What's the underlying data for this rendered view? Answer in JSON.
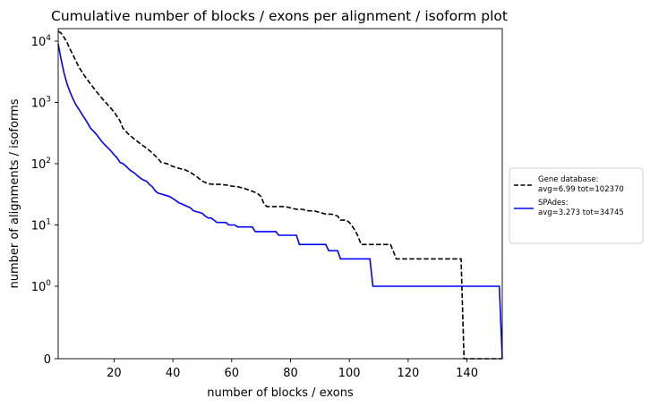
{
  "chart_data": {
    "type": "line",
    "title": "Cumulative number of blocks / exons per alignment / isoform plot",
    "xlabel": "number of blocks / exons",
    "ylabel": "number of alignments / isoforms",
    "xlim": [
      1,
      152
    ],
    "yscale": "symlog",
    "ylim": [
      0,
      30000
    ],
    "grid": false,
    "legend_placement": "outside-right",
    "x_ticks": [
      20,
      40,
      60,
      80,
      100,
      120,
      140
    ],
    "y_ticks": [
      {
        "value": 0,
        "base": "0",
        "exp": ""
      },
      {
        "value": 1,
        "base": "10",
        "exp": "0"
      },
      {
        "value": 10,
        "base": "10",
        "exp": "1"
      },
      {
        "value": 100,
        "base": "10",
        "exp": "2"
      },
      {
        "value": 1000,
        "base": "10",
        "exp": "3"
      },
      {
        "value": 10000,
        "base": "10",
        "exp": "4"
      }
    ],
    "series": [
      {
        "name": "Gene database:",
        "legend_line2": "avg=6.99 tot=102370",
        "color": "#000000",
        "dash": true,
        "step": false,
        "points": [
          [
            1,
            14500
          ],
          [
            2,
            13500
          ],
          [
            3,
            11500
          ],
          [
            4,
            9500
          ],
          [
            5,
            7500
          ],
          [
            6,
            6000
          ],
          [
            7,
            4800
          ],
          [
            8,
            3800
          ],
          [
            9,
            3200
          ],
          [
            10,
            2700
          ],
          [
            12,
            2000
          ],
          [
            14,
            1500
          ],
          [
            16,
            1150
          ],
          [
            18,
            900
          ],
          [
            20,
            700
          ],
          [
            22,
            500
          ],
          [
            23,
            380
          ],
          [
            25,
            300
          ],
          [
            27,
            250
          ],
          [
            29,
            210
          ],
          [
            31,
            180
          ],
          [
            33,
            150
          ],
          [
            35,
            120
          ],
          [
            36,
            105
          ],
          [
            38,
            100
          ],
          [
            40,
            90
          ],
          [
            42,
            84
          ],
          [
            44,
            80
          ],
          [
            46,
            72
          ],
          [
            48,
            62
          ],
          [
            50,
            52
          ],
          [
            52,
            47
          ],
          [
            54,
            46
          ],
          [
            56,
            46
          ],
          [
            58,
            45
          ],
          [
            60,
            43
          ],
          [
            62,
            42
          ],
          [
            64,
            40
          ],
          [
            66,
            37
          ],
          [
            68,
            34
          ],
          [
            69,
            32
          ],
          [
            70,
            29
          ],
          [
            71,
            22
          ],
          [
            72,
            20
          ],
          [
            74,
            20
          ],
          [
            76,
            20
          ],
          [
            78,
            20
          ],
          [
            80,
            19
          ],
          [
            82,
            18
          ],
          [
            84,
            18
          ],
          [
            86,
            17
          ],
          [
            88,
            17
          ],
          [
            90,
            16
          ],
          [
            92,
            15
          ],
          [
            94,
            15
          ],
          [
            96,
            14
          ],
          [
            97,
            12
          ],
          [
            99,
            12
          ],
          [
            100,
            11
          ],
          [
            101,
            9.5
          ],
          [
            102,
            8
          ],
          [
            103,
            6.5
          ],
          [
            104,
            4.8
          ],
          [
            106,
            4.8
          ],
          [
            110,
            4.8
          ],
          [
            112,
            4.8
          ],
          [
            114,
            4.8
          ],
          [
            116,
            2.8
          ],
          [
            120,
            2.8
          ],
          [
            130,
            2.8
          ],
          [
            138,
            2.8
          ],
          [
            139,
            0
          ],
          [
            152,
            0
          ]
        ]
      },
      {
        "name": "SPAdes:",
        "legend_line2": "avg=3.273 tot=34745",
        "color": "#0000ff",
        "dash": false,
        "step": false,
        "points": [
          [
            1,
            9000
          ],
          [
            2,
            5000
          ],
          [
            3,
            3000
          ],
          [
            4,
            2000
          ],
          [
            5,
            1500
          ],
          [
            6,
            1150
          ],
          [
            7,
            920
          ],
          [
            8,
            780
          ],
          [
            9,
            650
          ],
          [
            10,
            550
          ],
          [
            11,
            460
          ],
          [
            12,
            380
          ],
          [
            13,
            340
          ],
          [
            14,
            300
          ],
          [
            15,
            260
          ],
          [
            16,
            225
          ],
          [
            17,
            200
          ],
          [
            18,
            180
          ],
          [
            19,
            160
          ],
          [
            20,
            140
          ],
          [
            21,
            125
          ],
          [
            22,
            105
          ],
          [
            23,
            100
          ],
          [
            24,
            92
          ],
          [
            25,
            82
          ],
          [
            26,
            75
          ],
          [
            27,
            70
          ],
          [
            28,
            63
          ],
          [
            29,
            58
          ],
          [
            30,
            54
          ],
          [
            31,
            52
          ],
          [
            32,
            46
          ],
          [
            33,
            42
          ],
          [
            34,
            36
          ],
          [
            35,
            33
          ],
          [
            36,
            32
          ],
          [
            37,
            31
          ],
          [
            38,
            30
          ],
          [
            39,
            29
          ],
          [
            40,
            27
          ],
          [
            41,
            25
          ],
          [
            42,
            23
          ],
          [
            43,
            22
          ],
          [
            44,
            21
          ],
          [
            45,
            20
          ],
          [
            46,
            19
          ],
          [
            47,
            17
          ],
          [
            48,
            16.5
          ],
          [
            49,
            16
          ],
          [
            50,
            15.5
          ],
          [
            51,
            14
          ],
          [
            52,
            13
          ],
          [
            53,
            13
          ],
          [
            54,
            12
          ],
          [
            55,
            11
          ],
          [
            58,
            11
          ],
          [
            59,
            10
          ],
          [
            61,
            10
          ],
          [
            62,
            9.3
          ],
          [
            67,
            9.3
          ],
          [
            68,
            7.8
          ],
          [
            75,
            7.8
          ],
          [
            76,
            6.8
          ],
          [
            82,
            6.8
          ],
          [
            83,
            4.8
          ],
          [
            92,
            4.8
          ],
          [
            93,
            3.8
          ],
          [
            96,
            3.8
          ],
          [
            97,
            2.8
          ],
          [
            107,
            2.8
          ],
          [
            108,
            1
          ],
          [
            151,
            1
          ],
          [
            152,
            0
          ]
        ]
      }
    ]
  }
}
